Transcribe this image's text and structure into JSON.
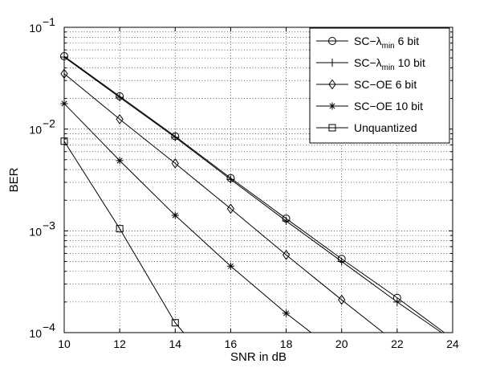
{
  "chart_data": {
    "type": "line",
    "title": "",
    "xlabel": "SNR in dB",
    "ylabel": "BER",
    "xlim": [
      10,
      24
    ],
    "ylim": [
      0.0001,
      0.1
    ],
    "yscale": "log",
    "grid": true,
    "legend_position": "top-right",
    "x_ticks": [
      10,
      12,
      14,
      16,
      18,
      20,
      22,
      24
    ],
    "x_tick_labels": [
      "10",
      "12",
      "14",
      "16",
      "18",
      "20",
      "22",
      "24"
    ],
    "y_ticks": [
      0.0001,
      0.001,
      0.01,
      0.1
    ],
    "y_tick_labels": [
      {
        "base": "10",
        "exp": "−4"
      },
      {
        "base": "10",
        "exp": "−3"
      },
      {
        "base": "10",
        "exp": "−2"
      },
      {
        "base": "10",
        "exp": "−1"
      }
    ],
    "series": [
      {
        "name": "SC−λ_min 6 bit",
        "legend_parts": [
          "SC−λ",
          "min",
          " 6 bit"
        ],
        "marker": "circle",
        "x": [
          10,
          12,
          14,
          16,
          18,
          20,
          22,
          23.7
        ],
        "y": [
          0.052,
          0.021,
          0.0085,
          0.0033,
          0.00132,
          0.00053,
          0.00022,
          0.0001
        ]
      },
      {
        "name": "SC−λ_min 10 bit",
        "legend_parts": [
          "SC−λ",
          "min",
          " 10 bit"
        ],
        "marker": "plus",
        "x": [
          10,
          12,
          14,
          16,
          18,
          20,
          22,
          23.6
        ],
        "y": [
          0.051,
          0.0205,
          0.0083,
          0.0032,
          0.00125,
          0.0005,
          0.0002,
          0.0001
        ]
      },
      {
        "name": "SC−OE 6 bit",
        "legend_parts": [
          "SC−OE 6 bit"
        ],
        "marker": "diamond",
        "x": [
          10,
          12,
          14,
          16,
          18,
          20,
          21.5
        ],
        "y": [
          0.035,
          0.0125,
          0.0046,
          0.00165,
          0.00058,
          0.00021,
          0.0001
        ]
      },
      {
        "name": "SC−OE 10 bit",
        "legend_parts": [
          "SC−OE 10 bit"
        ],
        "marker": "star",
        "x": [
          10,
          12,
          14,
          16,
          18,
          18.9
        ],
        "y": [
          0.0178,
          0.0049,
          0.00142,
          0.00045,
          0.000155,
          0.0001
        ]
      },
      {
        "name": "Unquantized",
        "legend_parts": [
          "Unquantized"
        ],
        "marker": "square",
        "x": [
          10,
          12,
          14,
          14.3
        ],
        "y": [
          0.0076,
          0.00105,
          0.000125,
          0.0001
        ]
      }
    ]
  }
}
